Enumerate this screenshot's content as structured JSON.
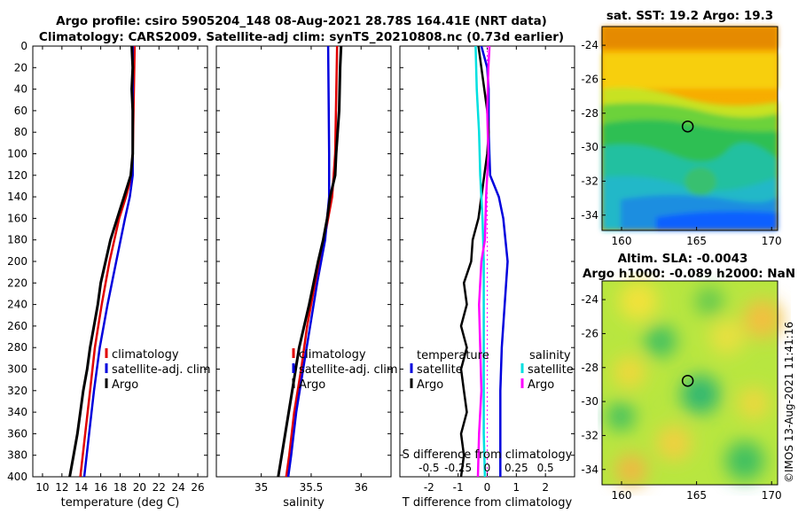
{
  "figure": {
    "title_line1": "Argo profile: csiro 5905204_148 08-Aug-2021 28.78S 164.41E (NRT data)",
    "title_line2": "Climatology: CARS2009. Satellite-adj clim: synTS_20210808.nc (0.73d earlier)",
    "side_label": "©IMOS 13-Aug-2021 11:41:16"
  },
  "colors": {
    "climatology": "#e00000",
    "satellite": "#0000dd",
    "argo": "#000000",
    "sal_satellite": "#00e0e0",
    "sal_argo": "#ff00ff"
  },
  "chart_data": [
    {
      "type": "line",
      "name": "temperature-profile",
      "xlabel": "temperature (deg C)",
      "ylabel": "",
      "xlim": [
        9,
        27
      ],
      "ylim": [
        0,
        400
      ],
      "xticks": [
        10,
        12,
        14,
        16,
        18,
        20,
        22,
        24,
        26
      ],
      "yticks": [
        0,
        20,
        40,
        60,
        80,
        100,
        120,
        140,
        160,
        180,
        200,
        220,
        240,
        260,
        280,
        300,
        320,
        340,
        360,
        380,
        400
      ],
      "legend": [
        "climatology",
        "satellite-adj. clim",
        "Argo"
      ],
      "series": [
        {
          "name": "climatology",
          "depth": [
            0,
            100,
            120,
            140,
            160,
            200,
            240,
            280,
            320,
            360,
            400
          ],
          "values": [
            19.5,
            19.3,
            19.2,
            18.6,
            17.9,
            16.9,
            16.1,
            15.4,
            14.9,
            14.4,
            13.9
          ]
        },
        {
          "name": "satellite-adj. clim",
          "depth": [
            0,
            100,
            120,
            140,
            160,
            200,
            240,
            280,
            320,
            360,
            400
          ],
          "values": [
            19.3,
            19.3,
            19.3,
            19.0,
            18.5,
            17.6,
            16.7,
            15.9,
            15.3,
            14.8,
            14.3
          ]
        },
        {
          "name": "Argo",
          "depth": [
            0,
            20,
            40,
            60,
            80,
            100,
            120,
            140,
            160,
            180,
            200,
            220,
            240,
            260,
            280,
            300,
            320,
            340,
            360,
            380,
            400
          ],
          "values": [
            19.2,
            19.3,
            19.2,
            19.3,
            19.3,
            19.3,
            19.1,
            18.4,
            17.7,
            17.0,
            16.5,
            16.0,
            15.7,
            15.3,
            14.9,
            14.6,
            14.2,
            13.9,
            13.6,
            13.2,
            12.8
          ]
        }
      ]
    },
    {
      "type": "line",
      "name": "salinity-profile",
      "xlabel": "salinity",
      "ylabel": "",
      "xlim": [
        34.55,
        36.3
      ],
      "ylim": [
        0,
        400
      ],
      "xticks": [
        35,
        35.5,
        36
      ],
      "legend": [
        "climatology",
        "satellite-adj. clim",
        "Argo"
      ],
      "series": [
        {
          "name": "climatology",
          "depth": [
            0,
            100,
            140,
            180,
            220,
            260,
            300,
            340,
            380,
            400
          ],
          "values": [
            35.76,
            35.74,
            35.71,
            35.63,
            35.54,
            35.46,
            35.4,
            35.33,
            35.28,
            35.25
          ]
        },
        {
          "name": "satellite-adj. clim",
          "depth": [
            0,
            100,
            140,
            180,
            220,
            260,
            300,
            340,
            380,
            400
          ],
          "values": [
            35.67,
            35.68,
            35.68,
            35.64,
            35.56,
            35.49,
            35.42,
            35.35,
            35.3,
            35.27
          ]
        },
        {
          "name": "Argo",
          "depth": [
            0,
            20,
            60,
            100,
            120,
            140,
            160,
            180,
            200,
            240,
            280,
            320,
            360,
            400
          ],
          "values": [
            35.8,
            35.79,
            35.78,
            35.75,
            35.74,
            35.69,
            35.66,
            35.62,
            35.57,
            35.48,
            35.38,
            35.31,
            35.24,
            35.17
          ]
        }
      ]
    },
    {
      "type": "line",
      "name": "difference-profile",
      "xlabel": "T difference from climatology",
      "xlabel_top": "S difference from climatology",
      "xlim": [
        -3,
        3
      ],
      "ylim": [
        0,
        400
      ],
      "xticks": [
        -2,
        -1,
        0,
        1,
        2
      ],
      "xticks_top": [
        -0.5,
        -0.25,
        0,
        0.25,
        0.5
      ],
      "xticks_top_labels": [
        "-0.5",
        "-0.25",
        "0",
        "0.25",
        "0.5"
      ],
      "legend_temperature_title": "temperature",
      "legend_salinity_title": "salinity",
      "legend_temperature": [
        "satellite",
        "Argo"
      ],
      "legend_salinity": [
        "satellite",
        "Argo"
      ],
      "series": [
        {
          "name": "temperature satellite",
          "depth": [
            0,
            20,
            40,
            80,
            120,
            140,
            160,
            200,
            240,
            280,
            320,
            360,
            400
          ],
          "values": [
            -0.2,
            0.0,
            0.05,
            0.05,
            0.1,
            0.4,
            0.55,
            0.7,
            0.6,
            0.5,
            0.45,
            0.45,
            0.45
          ]
        },
        {
          "name": "temperature Argo",
          "depth": [
            0,
            20,
            40,
            60,
            80,
            100,
            120,
            140,
            160,
            180,
            200,
            220,
            240,
            260,
            280,
            300,
            320,
            340,
            360,
            380,
            400
          ],
          "values": [
            -0.3,
            -0.2,
            -0.1,
            0.0,
            0.05,
            0.0,
            -0.1,
            -0.2,
            -0.3,
            -0.5,
            -0.55,
            -0.8,
            -0.7,
            -0.9,
            -0.7,
            -0.9,
            -0.8,
            -0.7,
            -0.9,
            -0.8,
            -0.9
          ]
        },
        {
          "name": "salinity satellite",
          "depth": [
            0,
            40,
            80,
            120,
            160,
            200,
            240,
            280,
            320,
            360,
            400
          ],
          "values": [
            -0.1,
            -0.09,
            -0.07,
            -0.06,
            -0.04,
            -0.03,
            -0.03,
            -0.03,
            -0.03,
            -0.03,
            -0.02
          ]
        },
        {
          "name": "salinity Argo",
          "depth": [
            0,
            20,
            60,
            100,
            140,
            180,
            200,
            240,
            280,
            320,
            360,
            400
          ],
          "values": [
            0.02,
            0.01,
            0.0,
            0.01,
            -0.01,
            -0.02,
            -0.05,
            -0.07,
            -0.06,
            -0.05,
            -0.07,
            -0.08
          ]
        }
      ],
      "dotted_zero_line": true
    },
    {
      "type": "heatmap",
      "name": "satellite-sst-map",
      "title": "sat. SST: 19.2 Argo: 19.3",
      "xlim": [
        158.7,
        170.4
      ],
      "ylim": [
        -34.9,
        -22.9
      ],
      "xticks": [
        160,
        165,
        170
      ],
      "yticks": [
        -24,
        -26,
        -28,
        -30,
        -32,
        -34
      ],
      "argo_position": [
        164.41,
        -28.78
      ]
    },
    {
      "type": "heatmap",
      "name": "altimetry-sla-map",
      "title_line1": "Altim. SLA: -0.0043",
      "title_line2": "Argo h1000: -0.089 h2000: NaN",
      "xlim": [
        158.7,
        170.4
      ],
      "ylim": [
        -34.9,
        -22.9
      ],
      "xticks": [
        160,
        165,
        170
      ],
      "yticks": [
        -24,
        -26,
        -28,
        -30,
        -32,
        -34
      ],
      "argo_position": [
        164.41,
        -28.78
      ]
    }
  ]
}
